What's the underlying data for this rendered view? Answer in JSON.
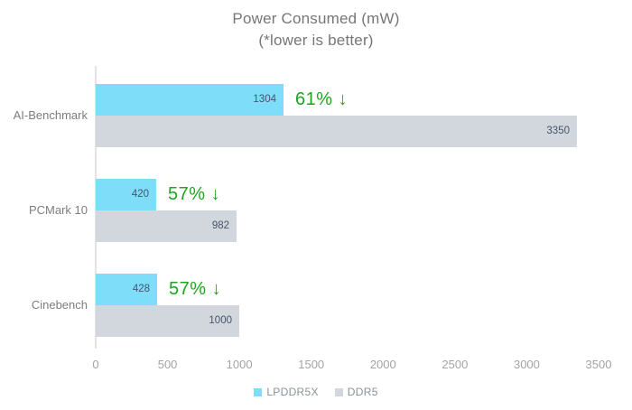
{
  "title": {
    "line1": "Power Consumed (mW)",
    "line2": "(*lower is better)"
  },
  "chart_data": {
    "type": "bar",
    "orientation": "horizontal",
    "title": "Power Consumed (mW)",
    "subtitle": "(*lower is better)",
    "categories": [
      "AI-Benchmark",
      "PCMark 10",
      "Cinebench"
    ],
    "series": [
      {
        "name": "LPDDR5X",
        "color": "#7edef9",
        "values": [
          1304,
          420,
          428
        ]
      },
      {
        "name": "DDR5",
        "color": "#d2d7de",
        "values": [
          3350,
          982,
          1000
        ]
      }
    ],
    "annotations": [
      {
        "category": "AI-Benchmark",
        "label": "61% ↓"
      },
      {
        "category": "PCMark 10",
        "label": "57% ↓"
      },
      {
        "category": "Cinebench",
        "label": "57% ↓"
      }
    ],
    "annotation_color": "#1aa71a",
    "value_label_color": "#47536b",
    "xlim": [
      0,
      3500
    ],
    "xticks": [
      0,
      500,
      1000,
      1500,
      2000,
      2500,
      3000,
      3500
    ],
    "grid": false,
    "legend_position": "bottom"
  },
  "legend": {
    "items": [
      {
        "label": "LPDDR5X",
        "color": "#7edef9"
      },
      {
        "label": "DDR5",
        "color": "#d2d7de"
      }
    ]
  }
}
